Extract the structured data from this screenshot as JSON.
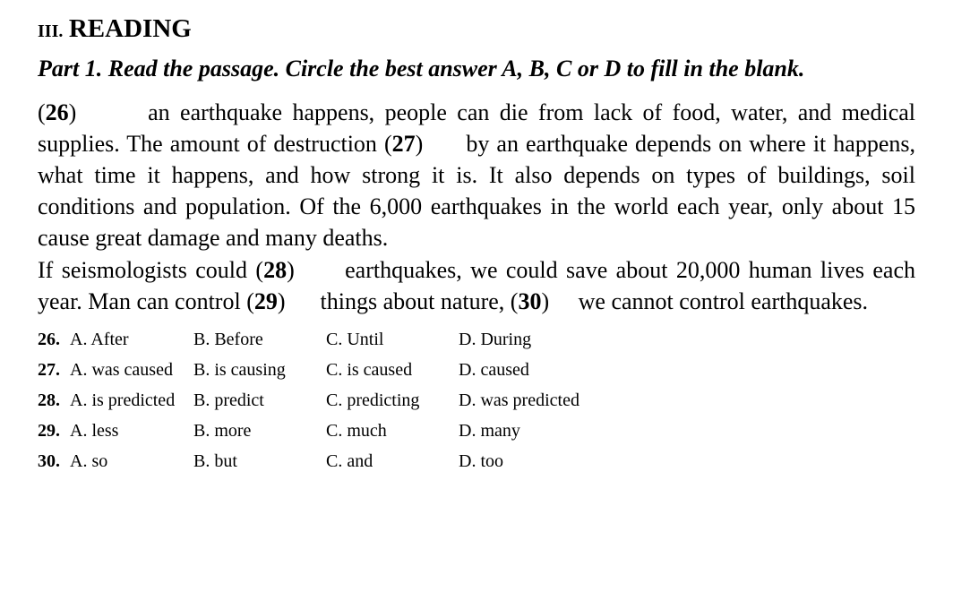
{
  "heading": {
    "roman": "III.",
    "title": "READING"
  },
  "instructions": "Part 1. Read the passage. Circle the best answer A, B, C or D to fill in the blank.",
  "passage": {
    "p1_a": "(",
    "b26": "26",
    "p1_b": ")       an earthquake happens, people can die from lack of food, water, and medical supplies. The amount of destruction (",
    "b27": "27",
    "p1_c": ")      by an earthquake depends on where it happens, what time it happens, and how strong it is. It also depends on types of buildings, soil conditions and population. Of the 6,000 earthquakes in the world each year, only about 15 cause great damage and many deaths.",
    "p2_a": "If seismologists could (",
    "b28": "28",
    "p2_b": ")      earthquakes, we could save about 20,000 human lives each year. Man can control (",
    "b29": "29",
    "p2_c": ")      things about nature, (",
    "b30": "30",
    "p2_d": ")     we cannot control earthquakes."
  },
  "options": [
    {
      "num": "26.",
      "a": "A. After",
      "b": "B. Before",
      "c": "C. Until",
      "d": "D. During"
    },
    {
      "num": "27.",
      "a": "A. was caused",
      "b": "B. is causing",
      "c": "C. is caused",
      "d": "D. caused"
    },
    {
      "num": "28.",
      "a": "A. is predicted",
      "b": "B. predict",
      "c": "C. predicting",
      "d": "D. was predicted"
    },
    {
      "num": "29.",
      "a": "A. less",
      "b": "B. more",
      "c": "C. much",
      "d": "D. many"
    },
    {
      "num": "30.",
      "a": "A. so",
      "b": "B. but",
      "c": "C. and",
      "d": "D. too"
    }
  ]
}
